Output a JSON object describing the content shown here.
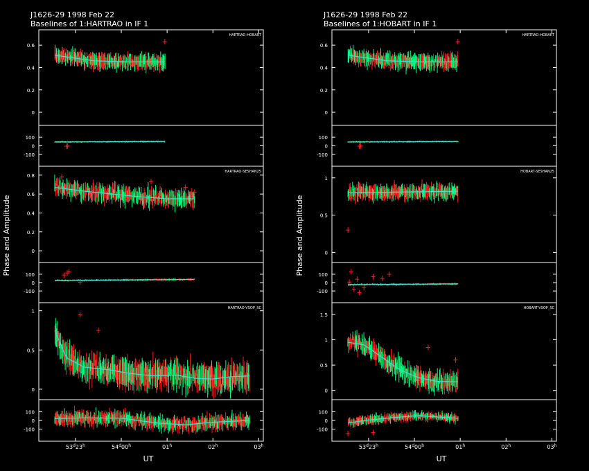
{
  "colors": {
    "background": "#000000",
    "frame": "#ffffff",
    "model": "#40e0d0",
    "data_a": "#00ff7f",
    "data_b": "#ff2020"
  },
  "chart_data": [
    {
      "type": "scatter",
      "title": "J1626-29  1998 Feb 22",
      "subtitle": "Baselines of 1:HARTRAO in IF 1",
      "ylabel": "Phase and Amplitude",
      "xlabel": "UT",
      "x_ticks": [
        {
          "x": 0.8,
          "day": "53",
          "hour": "23"
        },
        {
          "x": 1.8,
          "day": "54",
          "hour": "00"
        },
        {
          "x": 2.8,
          "hour": "01"
        },
        {
          "x": 3.8,
          "hour": "02"
        },
        {
          "x": 4.8,
          "hour": "03"
        }
      ],
      "xlim": [
        0,
        4.9
      ],
      "panels": [
        {
          "baseline": "HARTRAO-HOBART",
          "amp": {
            "yticks": [
              "0",
              "0.2",
              "0.4",
              "0.6"
            ],
            "ylim": [
              -0.08,
              0.7
            ],
            "t_range": [
              0.35,
              2.75
            ],
            "model": [
              [
                0.35,
                0.51
              ],
              [
                1.2,
                0.46
              ],
              [
                2.0,
                0.45
              ],
              [
                2.75,
                0.45
              ]
            ],
            "scatter": 0.03,
            "err": 0.05,
            "outliers": [
              [
                2.75,
                0.63
              ]
            ]
          },
          "phase": {
            "yticks": [
              "100",
              "0",
              "-100"
            ],
            "ylim": [
              -190,
              190
            ],
            "t_range": [
              0.35,
              2.75
            ],
            "model": [
              [
                0.35,
                45
              ],
              [
                2.75,
                50
              ]
            ],
            "scatter": 4,
            "err": 6,
            "outliers": [
              [
                0.6,
                -5
              ],
              [
                0.63,
                -2
              ]
            ]
          }
        },
        {
          "baseline": "HARTRAO-SESHAN25",
          "amp": {
            "yticks": [
              "0",
              "0.2",
              "0.4",
              "0.6",
              "0.8"
            ],
            "ylim": [
              -0.08,
              0.85
            ],
            "t_range": [
              0.35,
              3.4
            ],
            "model": [
              [
                0.35,
                0.67
              ],
              [
                1.0,
                0.63
              ],
              [
                2.0,
                0.58
              ],
              [
                2.8,
                0.55
              ],
              [
                3.4,
                0.55
              ]
            ],
            "scatter": 0.05,
            "err": 0.06,
            "outliers": [
              [
                0.5,
                0.78
              ],
              [
                1.9,
                0.55
              ],
              [
                2.45,
                0.73
              ],
              [
                3.2,
                0.67
              ],
              [
                3.4,
                0.62
              ]
            ]
          },
          "phase": {
            "yticks": [
              "100",
              "0",
              "-100"
            ],
            "ylim": [
              -190,
              190
            ],
            "t_range": [
              0.35,
              3.4
            ],
            "model": [
              [
                0.35,
                25
              ],
              [
                3.4,
                38
              ]
            ],
            "scatter": 4,
            "err": 8,
            "outliers": [
              [
                0.55,
                90
              ],
              [
                0.62,
                115
              ],
              [
                0.66,
                130
              ],
              [
                0.9,
                5
              ]
            ]
          }
        },
        {
          "baseline": "HARTRAO-VSOP_SC",
          "amp": {
            "yticks": [
              "0",
              "0.5",
              "1"
            ],
            "ylim": [
              -0.08,
              1.05
            ],
            "t_range": [
              0.35,
              4.6
            ],
            "model": [
              [
                0.35,
                0.75
              ],
              [
                0.6,
                0.4
              ],
              [
                1.0,
                0.28
              ],
              [
                1.5,
                0.25
              ],
              [
                2.0,
                0.2
              ],
              [
                2.5,
                0.17
              ],
              [
                3.0,
                0.18
              ],
              [
                3.4,
                0.14
              ],
              [
                3.8,
                0.13
              ],
              [
                4.2,
                0.16
              ],
              [
                4.6,
                0.17
              ]
            ],
            "scatter": 0.09,
            "err": 0.12,
            "outliers": [
              [
                0.9,
                0.95
              ],
              [
                1.3,
                0.75
              ]
            ]
          },
          "phase": {
            "yticks": [
              "100",
              "0",
              "-100"
            ],
            "ylim": [
              -190,
              190
            ],
            "t_range": [
              0.35,
              4.6
            ],
            "model": [
              [
                0.35,
                20
              ],
              [
                1.0,
                30
              ],
              [
                1.8,
                25
              ],
              [
                2.6,
                -30
              ],
              [
                3.2,
                -50
              ],
              [
                3.8,
                -20
              ],
              [
                4.6,
                0
              ]
            ],
            "scatter": 45,
            "err": 55,
            "outliers": []
          }
        }
      ]
    },
    {
      "type": "scatter",
      "title": "J1626-29  1998 Feb 22",
      "subtitle": "Baselines of 1:HOBART in IF 1",
      "ylabel": "Phase and Amplitude",
      "xlabel": "UT",
      "x_ticks": [
        {
          "x": 0.8,
          "day": "53",
          "hour": "23"
        },
        {
          "x": 1.8,
          "day": "54",
          "hour": "00"
        },
        {
          "x": 2.8,
          "hour": "01"
        },
        {
          "x": 3.8,
          "hour": "02"
        },
        {
          "x": 4.8,
          "hour": "03"
        }
      ],
      "xlim": [
        0,
        4.9
      ],
      "panels": [
        {
          "baseline": "HARTRAO-HOBART",
          "amp": {
            "yticks": [
              "0",
              "0.2",
              "0.4",
              "0.6"
            ],
            "ylim": [
              -0.08,
              0.7
            ],
            "t_range": [
              0.35,
              2.75
            ],
            "model": [
              [
                0.35,
                0.51
              ],
              [
                1.2,
                0.46
              ],
              [
                2.0,
                0.45
              ],
              [
                2.75,
                0.45
              ]
            ],
            "scatter": 0.03,
            "err": 0.05,
            "outliers": [
              [
                2.75,
                0.63
              ]
            ]
          },
          "phase": {
            "yticks": [
              "100",
              "0",
              "-100"
            ],
            "ylim": [
              -190,
              190
            ],
            "t_range": [
              0.35,
              2.75
            ],
            "model": [
              [
                0.35,
                45
              ],
              [
                2.75,
                50
              ]
            ],
            "scatter": 4,
            "err": 6,
            "outliers": [
              [
                0.6,
                -5
              ],
              [
                0.63,
                -2
              ]
            ]
          }
        },
        {
          "baseline": "HOBART-SESHAN25",
          "amp": {
            "yticks": [
              "0",
              "0.5",
              "1"
            ],
            "ylim": [
              -0.08,
              1.1
            ],
            "t_range": [
              0.35,
              2.75
            ],
            "model": [
              [
                0.35,
                0.8
              ],
              [
                2.75,
                0.82
              ]
            ],
            "scatter": 0.05,
            "err": 0.07,
            "outliers": [
              [
                0.35,
                0.3
              ],
              [
                0.38,
                0.75
              ],
              [
                0.42,
                0.72
              ],
              [
                0.5,
                0.8
              ]
            ]
          },
          "phase": {
            "yticks": [
              "100",
              "0",
              "-100"
            ],
            "ylim": [
              -190,
              190
            ],
            "t_range": [
              0.35,
              2.75
            ],
            "model": [
              [
                0.35,
                -25
              ],
              [
                2.75,
                -15
              ]
            ],
            "scatter": 5,
            "err": 8,
            "outliers": [
              [
                0.38,
                5
              ],
              [
                0.42,
                130
              ],
              [
                0.48,
                -80
              ],
              [
                0.55,
                40
              ],
              [
                0.6,
                -120
              ],
              [
                0.7,
                -60
              ],
              [
                0.9,
                70
              ],
              [
                1.1,
                50
              ],
              [
                1.25,
                100
              ]
            ]
          }
        },
        {
          "baseline": "HOBART-VSOP_SC",
          "amp": {
            "yticks": [
              "0",
              "0.5",
              "1",
              "1.5"
            ],
            "ylim": [
              -0.1,
              1.65
            ],
            "t_range": [
              0.35,
              2.75
            ],
            "model": [
              [
                0.35,
                0.95
              ],
              [
                0.7,
                0.9
              ],
              [
                1.1,
                0.65
              ],
              [
                1.5,
                0.4
              ],
              [
                1.9,
                0.25
              ],
              [
                2.3,
                0.18
              ],
              [
                2.75,
                0.17
              ]
            ],
            "scatter": 0.1,
            "err": 0.13,
            "outliers": [
              [
                2.1,
                0.85
              ],
              [
                2.7,
                0.6
              ]
            ]
          },
          "phase": {
            "yticks": [
              "100",
              "0",
              "-100"
            ],
            "ylim": [
              -190,
              190
            ],
            "t_range": [
              0.35,
              2.75
            ],
            "model": [
              [
                0.35,
                -30
              ],
              [
                0.8,
                5
              ],
              [
                1.4,
                35
              ],
              [
                1.9,
                55
              ],
              [
                2.3,
                40
              ],
              [
                2.75,
                25
              ]
            ],
            "scatter": 25,
            "err": 35,
            "outliers": [
              [
                0.35,
                -150
              ],
              [
                0.9,
                -140
              ]
            ]
          }
        }
      ]
    }
  ]
}
